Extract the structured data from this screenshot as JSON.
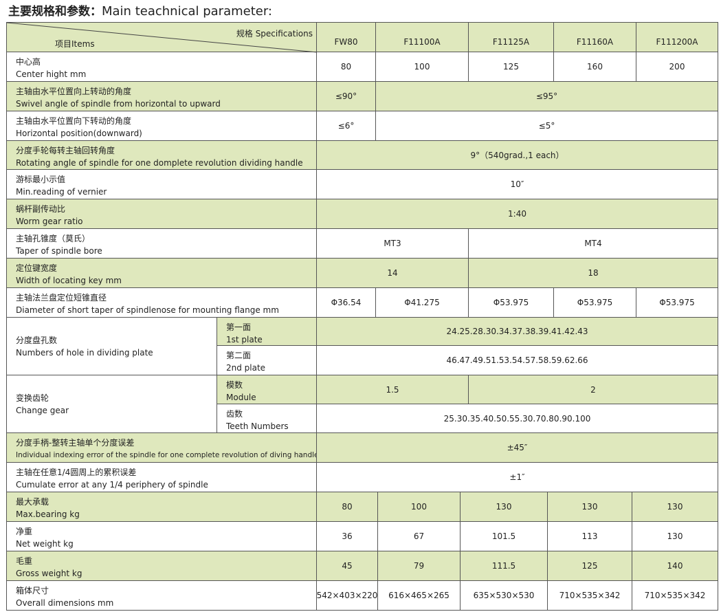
{
  "title": {
    "cn": "主要规格和参数：",
    "en": "Main teachnical parameter:"
  },
  "header": {
    "specs": "规格 Specifications",
    "items": "项目Items",
    "models": [
      "FW80",
      "F11100A",
      "F11125A",
      "F11160A",
      "F111200A"
    ]
  },
  "colors": {
    "row_green": "#dfe8bd",
    "row_white": "#ffffff",
    "border": "#555555"
  },
  "rows": [
    {
      "cn": "中心高",
      "en": "Center hight mm",
      "values": [
        "80",
        "100",
        "125",
        "160",
        "200"
      ]
    },
    {
      "cn": "主轴由水平位置向上转动的角度",
      "en": "Swivel angle of spindle from horizontal to upward",
      "values": [
        "≤90°",
        "≤95°"
      ]
    },
    {
      "cn": "主轴由水平位置向下转动的角度",
      "en": "Horizontal position(downward)",
      "values": [
        "≤6°",
        "≤5°"
      ]
    },
    {
      "cn": "分度手轮每转主轴回转角度",
      "en": "Rotating angle of spindle for one domplete revolution dividing handle",
      "values": [
        "9°（540grad.,1 each）"
      ]
    },
    {
      "cn": "游标最小示值",
      "en": "Min.reading of vernier",
      "values": [
        "10″"
      ]
    },
    {
      "cn": "蜗杆副传动比",
      "en": "Worm gear ratio",
      "values": [
        "1:40"
      ]
    },
    {
      "cn": "主轴孔锥度（莫氏）",
      "en": "Taper of spindle bore",
      "values": [
        "MT3",
        "MT4"
      ]
    },
    {
      "cn": "定位键宽度",
      "en": "Width of locating key mm",
      "values": [
        "14",
        "18"
      ]
    },
    {
      "cn": "主轴法兰盘定位短锥直径",
      "en": "Diameter of short taper of spindlenose for mounting flange mm",
      "values": [
        "Φ36.54",
        "Φ41.275",
        "Φ53.975",
        "Φ53.975",
        "Φ53.975"
      ]
    },
    {
      "cn": "分度盘孔数",
      "en": "Numbers of hole in dividing plate",
      "sub": [
        {
          "cn": "第一面",
          "en": "1st plate",
          "values": [
            "24.25.28.30.34.37.38.39.41.42.43"
          ]
        },
        {
          "cn": "第二面",
          "en": "2nd plate",
          "values": [
            "46.47.49.51.53.54.57.58.59.62.66"
          ]
        }
      ]
    },
    {
      "cn": "变换齿轮",
      "en": "Change gear",
      "sub": [
        {
          "cn": "模数",
          "en": "Module",
          "values": [
            "1.5",
            "2"
          ]
        },
        {
          "cn": "齿数",
          "en": "Teeth Numbers",
          "values": [
            "25.30.35.40.50.55.30.70.80.90.100"
          ]
        }
      ]
    },
    {
      "cn": "分度手柄-整转主轴单个分度误差",
      "en": "Individual indexing error of the spindle for one complete revolution of diving handle",
      "values": [
        "±45″"
      ]
    },
    {
      "cn": "主轴在任意1/4圆周上的累积误差",
      "en": "Cumulate error at any 1/4 periphery of spindle",
      "values": [
        "±1″"
      ]
    },
    {
      "cn": "最大承载",
      "en": "Max.bearing kg",
      "values": [
        "80",
        "100",
        "130",
        "130",
        "130"
      ]
    },
    {
      "cn": "净重",
      "en": "Net weight kg",
      "values": [
        "36",
        "67",
        "101.5",
        "113",
        "130"
      ]
    },
    {
      "cn": "毛重",
      "en": "Gross weight kg",
      "values": [
        "45",
        "79",
        "111.5",
        "125",
        "140"
      ]
    },
    {
      "cn": "箱体尺寸",
      "en": "Overall dimensions mm",
      "values": [
        "542×403×220",
        "616×465×265",
        "635×530×530",
        "710×535×342",
        "710×535×342"
      ]
    }
  ]
}
